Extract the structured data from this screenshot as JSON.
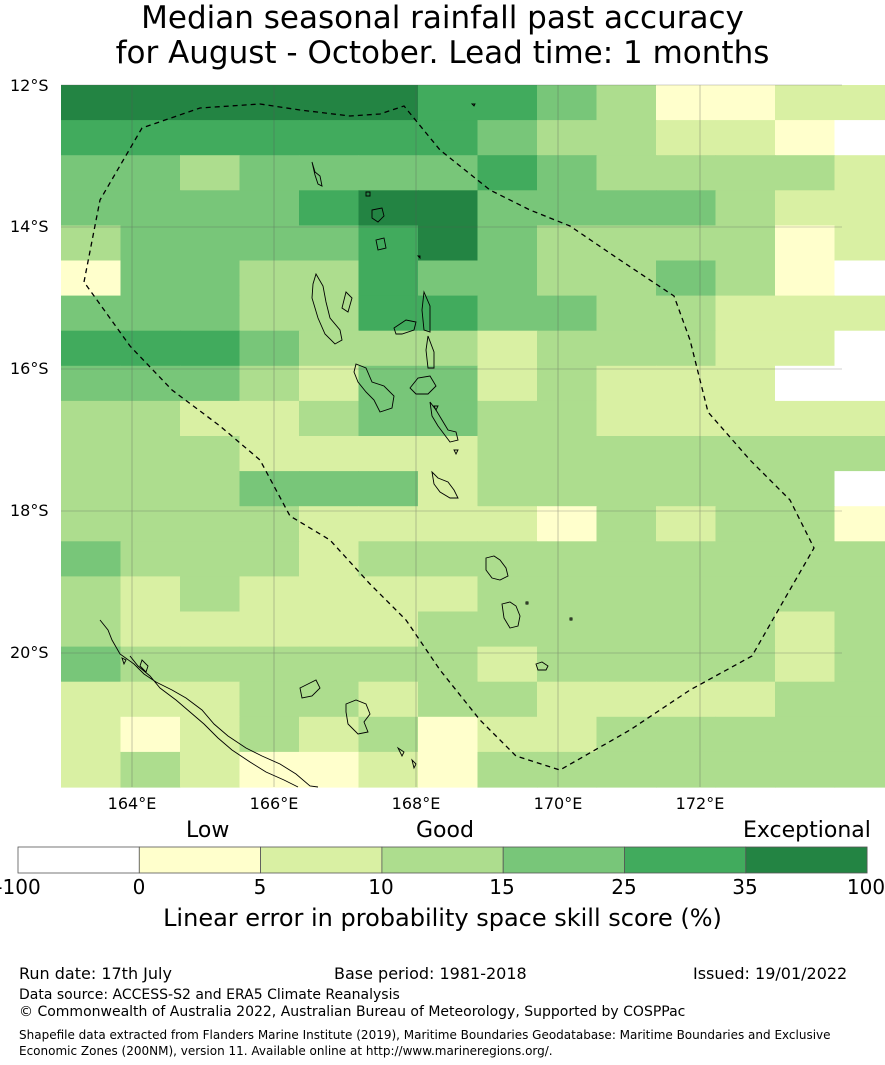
{
  "title_line1": "Median seasonal rainfall past accuracy",
  "title_line2": "for August - October. Lead time: 1 months",
  "lat_labels": [
    "12°S",
    "14°S",
    "16°S",
    "18°S",
    "20°S"
  ],
  "lon_labels": [
    "164°E",
    "166°E",
    "168°E",
    "170°E",
    "172°E"
  ],
  "colorbar": {
    "words": [
      "Low",
      "Good",
      "Exceptional"
    ],
    "ticks": [
      "-100",
      "0",
      "5",
      "10",
      "15",
      "25",
      "35",
      "100"
    ],
    "colors": [
      "#ffffff",
      "#ffffcc",
      "#d9f0a3",
      "#addd8e",
      "#78c679",
      "#41ab5d",
      "#238443"
    ],
    "title": "Linear error in probability space skill score (%)"
  },
  "grid_levels": [
    "66666655431122",
    "55555554332210",
    "44344445433332",
    "44445664444322",
    "34444564333312",
    "14433544334310",
    "44433554433222",
    "55543332333220",
    "44432442322200",
    "33223443322222",
    "33322223333333",
    "33344423333330",
    "33332222132331",
    "43332333333333",
    "32322223333333",
    "32222233333323",
    "43333332333323",
    "22233233222233",
    "21232312233333",
    "23211213333333"
  ],
  "footer": {
    "run_date": "Run date: 17th July",
    "base_period": "Base period: 1981-2018",
    "issued": "Issued: 19/01/2022",
    "data_source": "Data source: ACCESS-S2 and ERA5 Climate Reanalysis",
    "copyright": "© Commonwealth of Australia 2022, Australian Bureau of Meteorology, Supported by COSPPac",
    "shapefile": "Shapefile data extracted from Flanders Marine Institute (2019), Maritime Boundaries Geodatabase: Maritime Boundaries and Exclusive Economic Zones (200NM), version 11. Available online at http://www.marineregions.org/."
  }
}
